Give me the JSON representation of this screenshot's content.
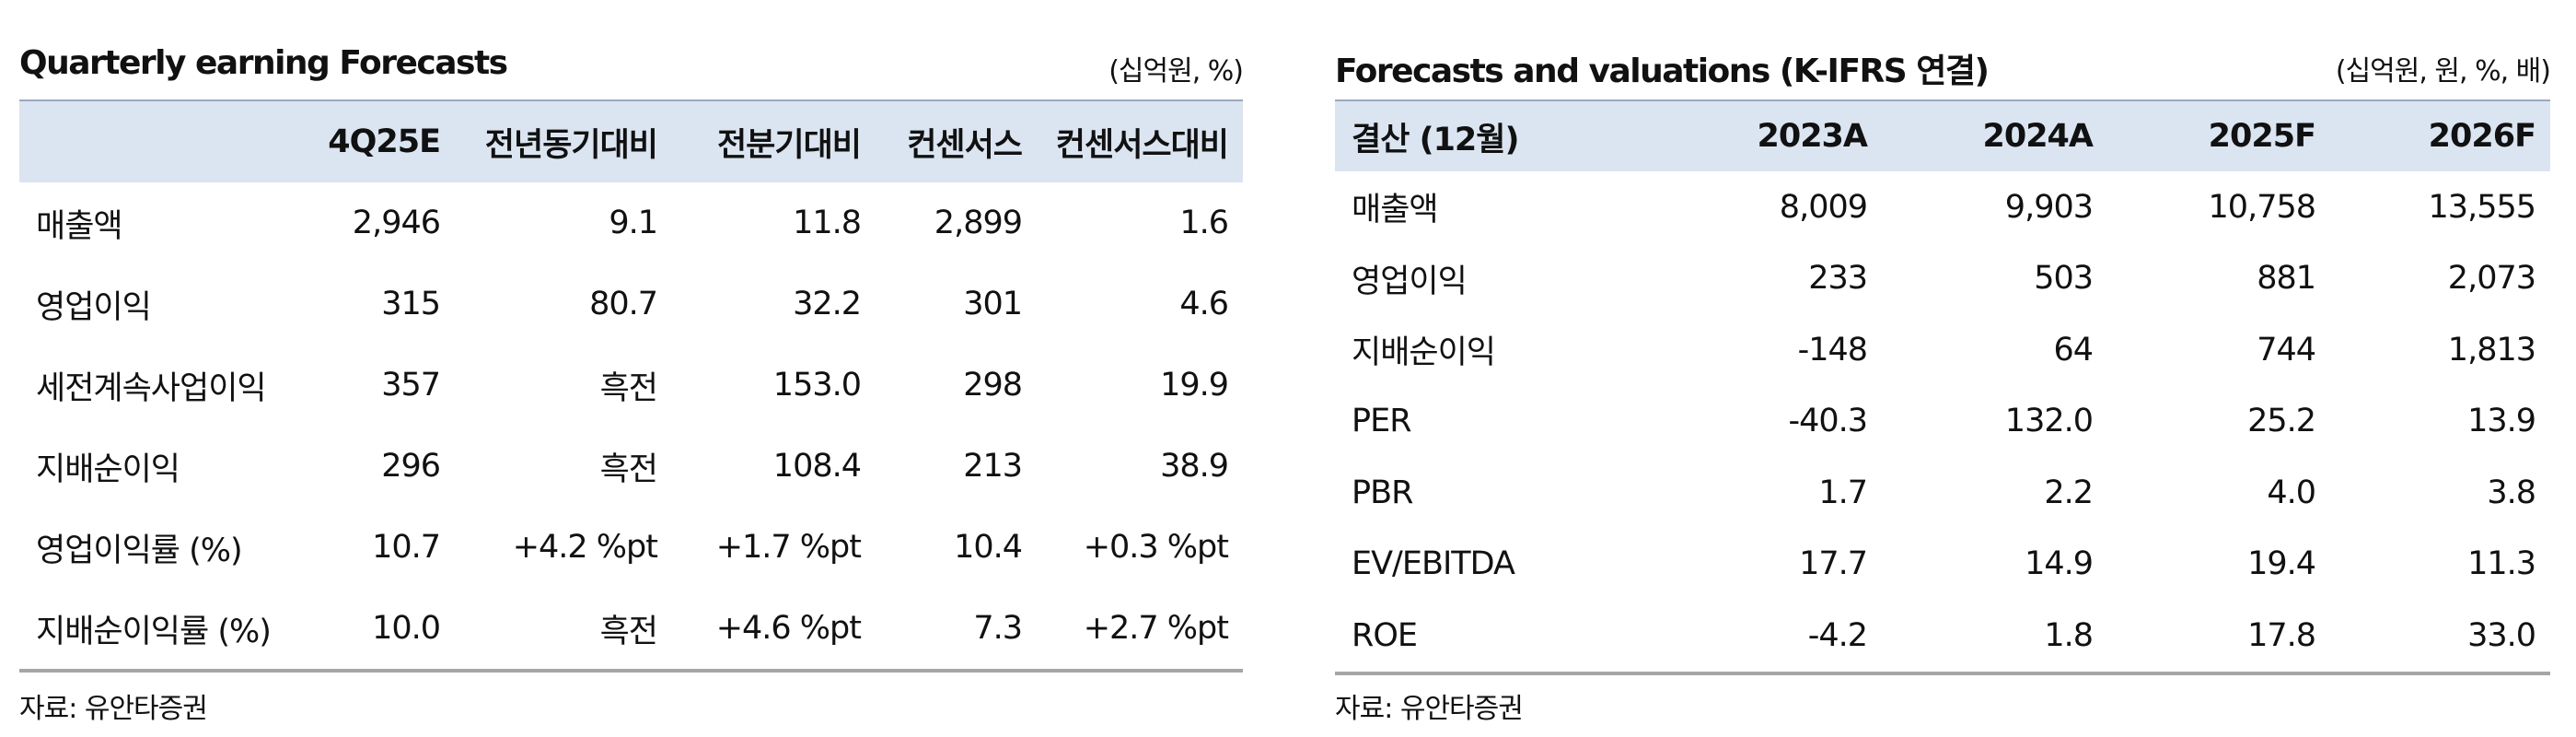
{
  "left": {
    "title": "Quarterly earning Forecasts",
    "unit": "(십억원, %)",
    "header": [
      "4Q25E",
      "전년동기대비",
      "전분기대비",
      "컨센서스",
      "컨센서스대비"
    ],
    "rows": [
      [
        "매출액",
        "2,946",
        "9.1",
        "11.8",
        "2,899",
        "1.6"
      ],
      [
        "영업이익",
        "315",
        "80.7",
        "32.2",
        "301",
        "4.6"
      ],
      [
        "세전계속사업이익",
        "357",
        "흑전",
        "153.0",
        "298",
        "19.9"
      ],
      [
        "지배순이익",
        "296",
        "흑전",
        "108.4",
        "213",
        "38.9"
      ],
      [
        "영업이익률 (%)",
        "10.7",
        "+4.2 %pt",
        "+1.7 %pt",
        "10.4",
        "+0.3 %pt"
      ],
      [
        "지배순이익률 (%)",
        "10.0",
        "흑전",
        "+4.6 %pt",
        "7.3",
        "+2.7 %pt"
      ]
    ],
    "source": "자료: 유안타증권"
  },
  "right": {
    "title": "Forecasts and valuations (K-IFRS 연결)",
    "unit": "(십억원, 원, %, 배)",
    "header": [
      "결산 (12월)",
      "2023A",
      "2024A",
      "2025F",
      "2026F"
    ],
    "rows": [
      [
        "매출액",
        "8,009",
        "9,903",
        "10,758",
        "13,555"
      ],
      [
        "영업이익",
        "233",
        "503",
        "881",
        "2,073"
      ],
      [
        "지배순이익",
        "-148",
        "64",
        "744",
        "1,813"
      ],
      [
        "PER",
        "-40.3",
        "132.0",
        "25.2",
        "13.9"
      ],
      [
        "PBR",
        "1.7",
        "2.2",
        "4.0",
        "3.8"
      ],
      [
        "EV/EBITDA",
        "17.7",
        "14.9",
        "19.4",
        "11.3"
      ],
      [
        "ROE",
        "-4.2",
        "1.8",
        "17.8",
        "33.0"
      ]
    ],
    "source": "자료: 유안타증권"
  }
}
